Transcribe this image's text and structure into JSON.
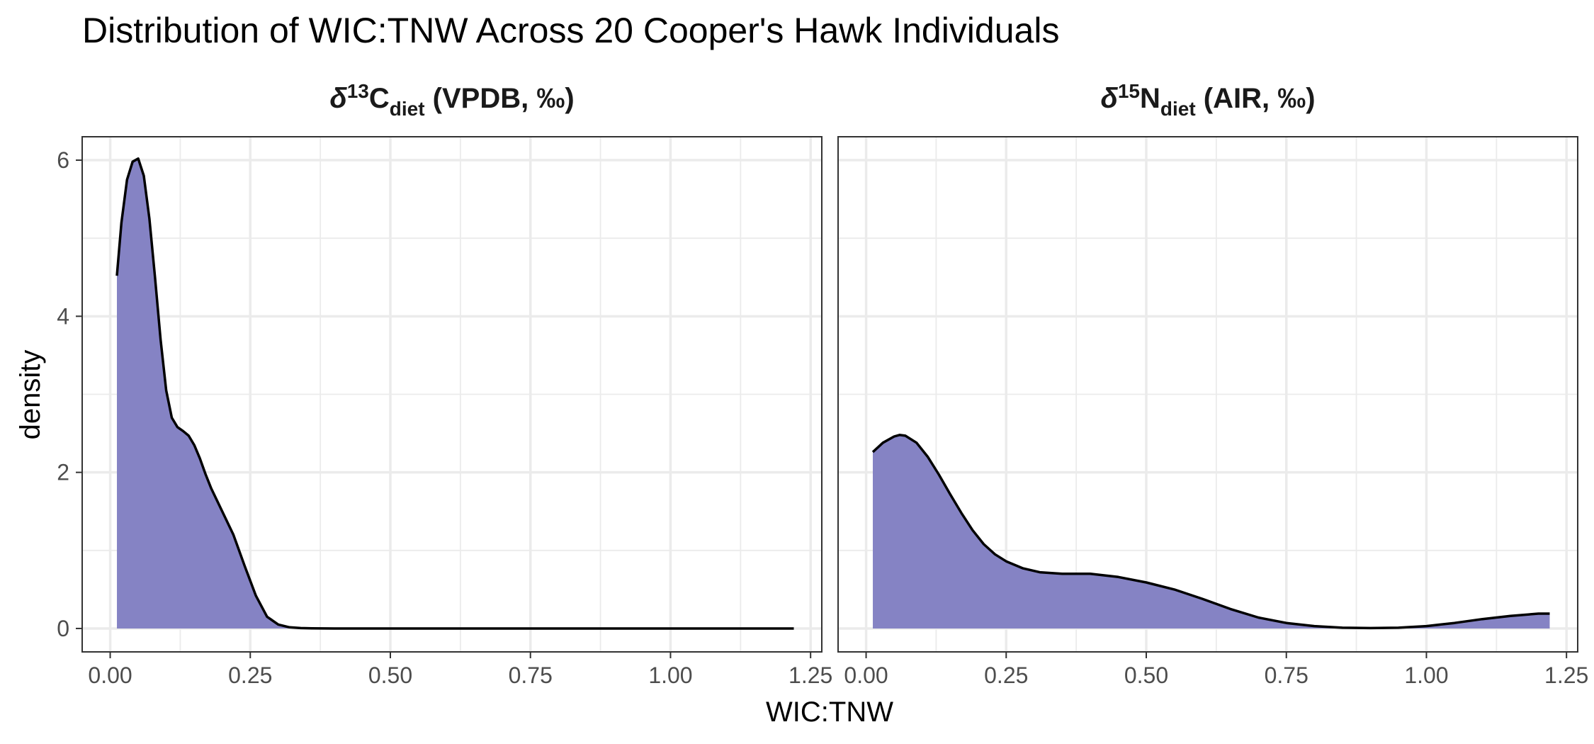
{
  "chart_data": {
    "type": "area",
    "title": "Distribution of WIC:TNW Across 20 Cooper's Hawk Individuals",
    "xlabel": "WIC:TNW",
    "ylabel": "density",
    "fill_color": "#8583c4",
    "line_color": "#000000",
    "grid": true,
    "facets": [
      {
        "strip": {
          "delta": "δ",
          "mass": "13",
          "element": "C",
          "sub": "diet",
          "rest": " (VPDB, ‰)"
        },
        "xlim": [
          -0.05,
          1.27
        ],
        "ylim": [
          -0.3,
          6.3
        ],
        "x_ticks": [
          0,
          0.25,
          0.5,
          0.75,
          1.0,
          1.25
        ],
        "x_tick_labels": [
          "0.00",
          "0.25",
          "0.50",
          "0.75",
          "1.00",
          "1.25"
        ],
        "y_ticks": [
          0,
          2,
          4,
          6
        ],
        "y_tick_labels": [
          "0",
          "2",
          "4",
          "6"
        ],
        "x": [
          0.012,
          0.02,
          0.03,
          0.04,
          0.05,
          0.06,
          0.07,
          0.08,
          0.09,
          0.1,
          0.11,
          0.12,
          0.13,
          0.14,
          0.15,
          0.16,
          0.17,
          0.18,
          0.19,
          0.2,
          0.22,
          0.24,
          0.26,
          0.28,
          0.3,
          0.32,
          0.34,
          0.36,
          0.4,
          0.5,
          0.75,
          1.0,
          1.22
        ],
        "y": [
          4.52,
          5.2,
          5.75,
          5.98,
          6.02,
          5.8,
          5.25,
          4.5,
          3.7,
          3.05,
          2.7,
          2.58,
          2.53,
          2.47,
          2.35,
          2.18,
          1.98,
          1.8,
          1.65,
          1.5,
          1.2,
          0.8,
          0.42,
          0.15,
          0.05,
          0.015,
          0.005,
          0.001,
          0,
          0,
          0,
          0,
          0
        ]
      },
      {
        "strip": {
          "delta": "δ",
          "mass": "15",
          "element": "N",
          "sub": "diet",
          "rest": " (AIR, ‰)"
        },
        "xlim": [
          -0.05,
          1.27
        ],
        "ylim": [
          -0.3,
          6.3
        ],
        "x_ticks": [
          0,
          0.25,
          0.5,
          0.75,
          1.0,
          1.25
        ],
        "x_tick_labels": [
          "0.00",
          "0.25",
          "0.50",
          "0.75",
          "1.00",
          "1.25"
        ],
        "y_ticks": [
          0,
          2,
          4,
          6
        ],
        "y_tick_labels": [
          "0",
          "2",
          "4",
          "6"
        ],
        "x": [
          0.012,
          0.03,
          0.05,
          0.06,
          0.07,
          0.09,
          0.11,
          0.13,
          0.15,
          0.17,
          0.19,
          0.21,
          0.23,
          0.25,
          0.28,
          0.31,
          0.35,
          0.4,
          0.45,
          0.5,
          0.55,
          0.6,
          0.65,
          0.7,
          0.75,
          0.8,
          0.85,
          0.9,
          0.95,
          1.0,
          1.05,
          1.1,
          1.15,
          1.2,
          1.22
        ],
        "y": [
          2.26,
          2.38,
          2.46,
          2.48,
          2.47,
          2.38,
          2.2,
          1.97,
          1.72,
          1.48,
          1.26,
          1.08,
          0.95,
          0.86,
          0.77,
          0.72,
          0.7,
          0.7,
          0.66,
          0.59,
          0.5,
          0.38,
          0.25,
          0.14,
          0.07,
          0.03,
          0.01,
          0.005,
          0.01,
          0.03,
          0.07,
          0.12,
          0.16,
          0.19,
          0.19
        ]
      }
    ]
  }
}
